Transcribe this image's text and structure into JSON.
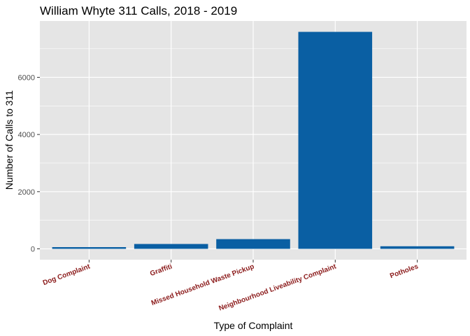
{
  "chart_data": {
    "type": "bar",
    "title": "William Whyte 311 Calls, 2018 - 2019",
    "xlabel": "Type of Complaint",
    "ylabel": "Number of Calls to 311",
    "categories": [
      "Dog Complaint",
      "Graffiti",
      "Missed Household Waste Pickup",
      "Neighbourhood Liveability Complaint",
      "Potholes"
    ],
    "values": [
      60,
      170,
      340,
      7590,
      90
    ],
    "ylim": [
      -380,
      7970
    ],
    "yticks": [
      0,
      2000,
      4000,
      6000
    ],
    "grid": true,
    "legend": "none",
    "colors": {
      "bar": "#0a5fa3",
      "panel": "#e5e5e5",
      "grid": "#ffffff",
      "xtick_label": "#8b1a1a",
      "ytick_label": "#4d4d4d"
    }
  }
}
